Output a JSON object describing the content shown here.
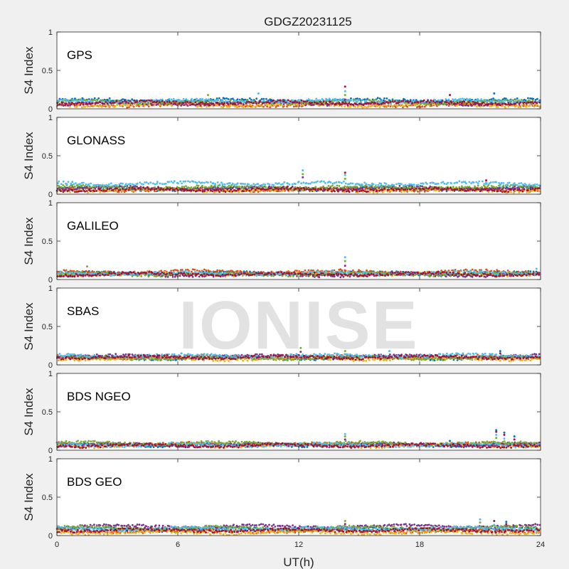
{
  "title": "GDGZ20231125",
  "watermark": "IONISE",
  "colors": {
    "background": "#f0f0f0",
    "axes_bg": "#ffffff",
    "axis_color": "#262626",
    "series_palette": [
      "#0072BD",
      "#D95319",
      "#EDB120",
      "#7E2F8E",
      "#77AC30",
      "#4DBEEE",
      "#A2142F"
    ]
  },
  "chart_data": [
    {
      "type": "scatter",
      "panel_label": "GPS",
      "ylabel": "S4 Index",
      "xlabel": "",
      "xlim": [
        0,
        24
      ],
      "ylim": [
        0,
        1
      ],
      "xticks": [
        "0",
        "6",
        "12",
        "18",
        "24"
      ],
      "yticks": [
        "0",
        "0.5",
        "1"
      ],
      "grid": false,
      "baseline_levels": [
        0.11,
        0.05,
        0.05,
        0.07,
        0.09,
        0.1,
        0.08
      ],
      "spikes": [
        {
          "x": 14.3,
          "values": [
            0.12,
            0.18,
            0.23,
            0.29
          ]
        },
        {
          "x": 7.5,
          "values": [
            0.18
          ]
        },
        {
          "x": 10.0,
          "values": [
            0.2
          ]
        },
        {
          "x": 19.5,
          "values": [
            0.18
          ]
        },
        {
          "x": 21.7,
          "values": [
            0.2
          ]
        }
      ]
    },
    {
      "type": "scatter",
      "panel_label": "GLONASS",
      "ylabel": "S4 Index",
      "xlabel": "",
      "xlim": [
        0,
        24
      ],
      "ylim": [
        0,
        1
      ],
      "xticks": [
        "0",
        "6",
        "12",
        "18",
        "24"
      ],
      "yticks": [
        "0",
        "0.5",
        "1"
      ],
      "grid": false,
      "baseline_levels": [
        0.07,
        0.06,
        0.05,
        0.08,
        0.09,
        0.14,
        0.06
      ],
      "spikes": [
        {
          "x": 12.2,
          "values": [
            0.22,
            0.26,
            0.31
          ]
        },
        {
          "x": 14.3,
          "values": [
            0.2,
            0.25,
            0.28
          ]
        },
        {
          "x": 21.3,
          "values": [
            0.15,
            0.18
          ]
        }
      ]
    },
    {
      "type": "scatter",
      "panel_label": "GALILEO",
      "ylabel": "S4 Index",
      "xlabel": "",
      "xlim": [
        0,
        24
      ],
      "ylim": [
        0,
        1
      ],
      "xticks": [
        "0",
        "6",
        "12",
        "18",
        "24"
      ],
      "yticks": [
        "0",
        "0.5",
        "1"
      ],
      "grid": false,
      "baseline_levels": [
        0.08,
        0.1,
        0.07,
        0.06,
        0.07,
        0.08,
        0.07
      ],
      "spikes": [
        {
          "x": 14.3,
          "values": [
            0.18,
            0.24,
            0.29
          ]
        },
        {
          "x": 1.5,
          "values": [
            0.17
          ]
        },
        {
          "x": 23.8,
          "values": [
            0.14
          ]
        }
      ]
    },
    {
      "type": "scatter",
      "panel_label": "SBAS",
      "ylabel": "S4 Index",
      "xlabel": "",
      "xlim": [
        0,
        24
      ],
      "ylim": [
        0,
        1
      ],
      "xticks": [
        "0",
        "6",
        "12",
        "18",
        "24"
      ],
      "yticks": [
        "0",
        "0.5",
        "1"
      ],
      "grid": false,
      "baseline_levels": [
        0.09,
        0.1,
        0.08,
        0.11,
        0.09,
        0.12,
        0.1
      ],
      "spikes": [
        {
          "x": 12.1,
          "values": [
            0.17,
            0.22
          ]
        },
        {
          "x": 14.3,
          "values": [
            0.18
          ]
        },
        {
          "x": 16.5,
          "values": [
            0.18
          ]
        },
        {
          "x": 22.0,
          "values": [
            0.15,
            0.18
          ]
        }
      ]
    },
    {
      "type": "scatter",
      "panel_label": "BDS NGEO",
      "ylabel": "S4 Index",
      "xlabel": "",
      "xlim": [
        0,
        24
      ],
      "ylim": [
        0,
        1
      ],
      "xticks": [
        "0",
        "6",
        "12",
        "18",
        "24"
      ],
      "yticks": [
        "0",
        "0.5",
        "1"
      ],
      "grid": false,
      "baseline_levels": [
        0.07,
        0.08,
        0.06,
        0.07,
        0.09,
        0.07,
        0.06
      ],
      "spikes": [
        {
          "x": 14.3,
          "values": [
            0.14,
            0.18,
            0.21
          ]
        },
        {
          "x": 21.8,
          "values": [
            0.16,
            0.2,
            0.24,
            0.26
          ]
        },
        {
          "x": 22.2,
          "values": [
            0.15,
            0.2,
            0.23
          ]
        },
        {
          "x": 22.7,
          "values": [
            0.14,
            0.18
          ]
        },
        {
          "x": 19.5,
          "values": [
            0.12
          ]
        }
      ]
    },
    {
      "type": "scatter",
      "panel_label": "BDS GEO",
      "ylabel": "S4 Index",
      "xlabel": "UT(h)",
      "xlim": [
        0,
        24
      ],
      "ylim": [
        0,
        1
      ],
      "xticks": [
        "0",
        "6",
        "12",
        "18",
        "24"
      ],
      "yticks": [
        "0",
        "0.5",
        "1"
      ],
      "grid": false,
      "baseline_levels": [
        0.08,
        0.06,
        0.04,
        0.12,
        0.1,
        0.09,
        0.07
      ],
      "spikes": [
        {
          "x": 14.3,
          "values": [
            0.15,
            0.19
          ]
        },
        {
          "x": 21.0,
          "values": [
            0.17,
            0.21
          ]
        },
        {
          "x": 21.7,
          "values": [
            0.14,
            0.19
          ]
        },
        {
          "x": 22.3,
          "values": [
            0.15,
            0.18
          ]
        }
      ]
    }
  ]
}
